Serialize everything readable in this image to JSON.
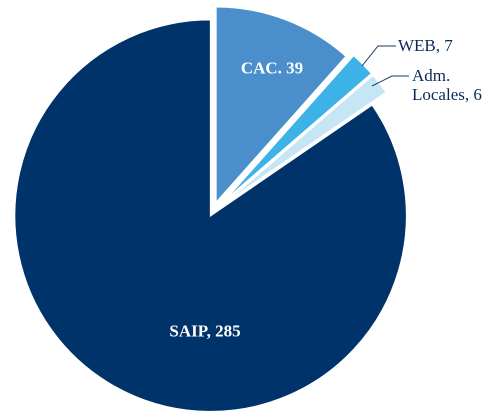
{
  "chart_data": {
    "type": "pie",
    "values": [
      39,
      7,
      6,
      285
    ],
    "value_labels": [
      "CAC. 39",
      "WEB, 7",
      "Adm. Locales, 6",
      "SAIP, 285"
    ],
    "colors": [
      "#4a8fcb",
      "#3db2e6",
      "#c6e6f5",
      "#003369"
    ]
  }
}
